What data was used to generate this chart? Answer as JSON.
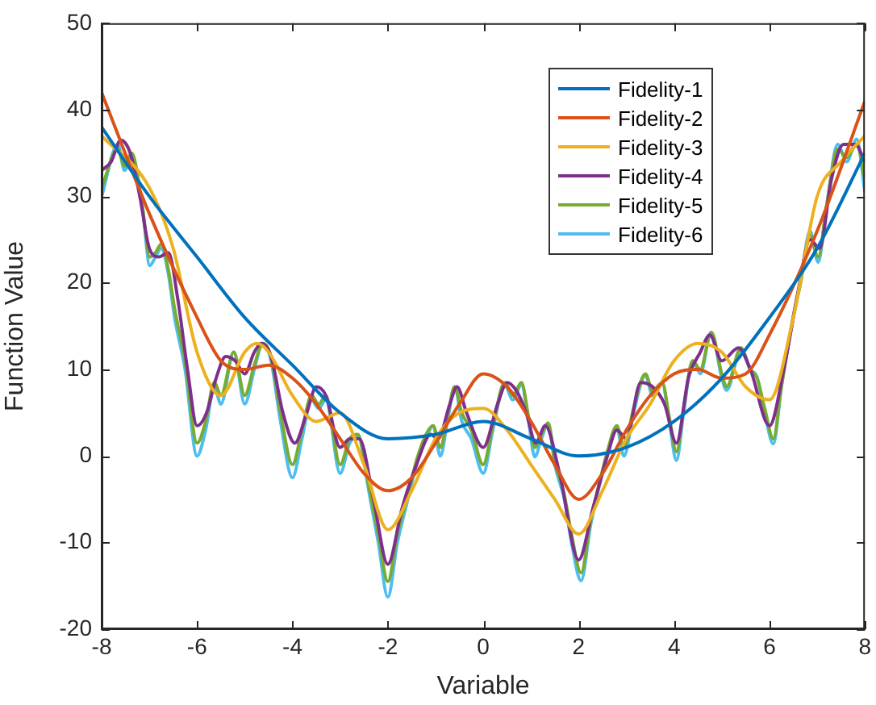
{
  "chart_data": {
    "type": "line",
    "xlabel": "Variable",
    "ylabel": "Function Value",
    "xlim": [
      -8,
      8
    ],
    "xticks": [
      -8,
      -6,
      -4,
      -2,
      0,
      2,
      4,
      6,
      8
    ],
    "ylim": [
      -20,
      50
    ],
    "yticks": [
      -20,
      -10,
      0,
      10,
      20,
      30,
      40,
      50
    ],
    "grid": false,
    "legend": "top right",
    "marker": "none",
    "line_style": "solid",
    "series": [
      {
        "name": "Fidelity-1",
        "color": "#0072bd",
        "x": [
          -8,
          -7,
          -6,
          -5,
          -4,
          -3,
          -2,
          -1,
          0,
          1,
          2,
          3,
          4,
          5,
          6,
          7,
          8
        ],
        "values": [
          38,
          30,
          23,
          16,
          10.5,
          5,
          2,
          2.5,
          4,
          2,
          0,
          1,
          4,
          9,
          16,
          24,
          35
        ]
      },
      {
        "name": "Fidelity-2",
        "color": "#d95319",
        "x": [
          -8,
          -7,
          -6,
          -5.5,
          -5,
          -4.5,
          -4,
          -3.5,
          -3,
          -2.5,
          -2,
          -1.5,
          -1,
          -0.5,
          0,
          0.5,
          1,
          1.5,
          2,
          2.5,
          3,
          3.5,
          4,
          4.5,
          5,
          5.5,
          6,
          7,
          8
        ],
        "values": [
          42,
          28,
          16,
          11,
          10,
          10.5,
          9,
          6,
          2,
          -2,
          -4,
          -2.5,
          1.5,
          6,
          9.5,
          8,
          4,
          -1,
          -5,
          -2,
          3,
          7,
          9.5,
          10,
          9,
          9.5,
          14,
          26,
          41
        ]
      },
      {
        "name": "Fidelity-3",
        "color": "#edb120",
        "x": [
          -8,
          -7,
          -6.5,
          -6,
          -5.5,
          -5,
          -4.75,
          -4.5,
          -4,
          -3.5,
          -3,
          -2.5,
          -2,
          -1.5,
          -1,
          -0.5,
          0,
          0.5,
          1,
          1.5,
          2,
          2.5,
          3,
          3.5,
          4,
          4.5,
          5,
          5.5,
          6,
          6.5,
          7,
          7.5,
          8
        ],
        "values": [
          37,
          31,
          24,
          12,
          7,
          12,
          13,
          12,
          7,
          4,
          5,
          -1,
          -8.5,
          -4,
          2,
          5,
          5.5,
          3,
          -1,
          -5,
          -9,
          -4,
          2,
          6,
          11,
          13,
          12,
          8,
          6.5,
          16,
          30,
          34,
          37
        ]
      },
      {
        "name": "Fidelity-4",
        "color": "#7e2f8e",
        "x": [
          -8,
          -7.8,
          -7.6,
          -7.4,
          -7.2,
          -7,
          -6.8,
          -6.6,
          -6.4,
          -6.2,
          -6,
          -5.8,
          -5.6,
          -5.4,
          -5.2,
          -5,
          -4.8,
          -4.65,
          -4.45,
          -4.2,
          -3.95,
          -3.7,
          -3.5,
          -3.3,
          -3,
          -2.8,
          -2.6,
          -2.3,
          -2,
          -1.7,
          -1.4,
          -1.1,
          -0.95,
          -0.7,
          -0.55,
          -0.35,
          0,
          0.3,
          0.5,
          0.7,
          0.9,
          1.1,
          1.3,
          1.6,
          2,
          2.3,
          2.6,
          2.8,
          3,
          3.3,
          3.55,
          3.8,
          4.05,
          4.3,
          4.55,
          4.75,
          5,
          5.35,
          5.6,
          6,
          6.3,
          6.6,
          6.85,
          7.05,
          7.3,
          7.55,
          7.8,
          8
        ],
        "values": [
          33,
          34,
          36.5,
          35,
          30,
          24,
          23,
          23.5,
          18,
          10,
          3.5,
          5,
          9,
          11.5,
          11,
          9.5,
          12,
          13,
          11.5,
          5,
          1.5,
          5,
          8,
          7,
          1,
          2,
          2,
          -5,
          -12.5,
          -6,
          -1,
          2.5,
          2,
          6,
          8,
          5,
          1,
          6,
          8.5,
          7.5,
          5,
          1.5,
          3.5,
          -2,
          -12,
          -6,
          0,
          3,
          2,
          8.5,
          8,
          6,
          1.5,
          9,
          12,
          14,
          11,
          12.5,
          10,
          3.5,
          10,
          19,
          25,
          24,
          32,
          36,
          36,
          34
        ]
      },
      {
        "name": "Fidelity-5",
        "color": "#77ac30",
        "x": [
          -8,
          -7.66,
          -7.52,
          -7.37,
          -7.15,
          -6.99,
          -6.87,
          -6.75,
          -6.6,
          -6.47,
          -6.25,
          -6,
          -5.82,
          -5.64,
          -5.5,
          -5.23,
          -5,
          -4.8,
          -4.62,
          -4.45,
          -4.25,
          -4,
          -3.8,
          -3.6,
          -3.45,
          -3.3,
          -3,
          -2.8,
          -2.63,
          -2.4,
          -2.2,
          -2,
          -1.8,
          -1.58,
          -1.4,
          -1.2,
          -1.05,
          -0.9,
          -0.75,
          -0.6,
          -0.45,
          -0.25,
          0,
          0.2,
          0.45,
          0.62,
          0.8,
          0.95,
          1.08,
          1.22,
          1.36,
          1.5,
          1.7,
          1.85,
          2.05,
          2.25,
          2.44,
          2.6,
          2.8,
          2.95,
          3.15,
          3.4,
          3.55,
          3.75,
          3.9,
          4.05,
          4.2,
          4.39,
          4.55,
          4.78,
          5,
          5.1,
          5.4,
          5.6,
          5.74,
          5.9,
          6.08,
          6.25,
          6.48,
          6.65,
          6.85,
          7.02,
          7.2,
          7.43,
          7.62,
          7.83,
          8
        ],
        "values": [
          31,
          35.5,
          33.5,
          35,
          29,
          23,
          23.5,
          24.5,
          21.5,
          17,
          11,
          1.5,
          4,
          8.5,
          7,
          12,
          7,
          10.5,
          13,
          11.5,
          5,
          -1,
          3,
          7,
          6,
          7,
          -1,
          2,
          2.5,
          -3.5,
          -9,
          -14.5,
          -9,
          -4.5,
          -0.5,
          2.5,
          3.5,
          1,
          4.5,
          8,
          5,
          3,
          -1,
          3.5,
          8.5,
          7,
          8.5,
          4.5,
          1,
          2.5,
          3.8,
          -0.5,
          -4.5,
          -9,
          -13.5,
          -7.5,
          -3,
          0.5,
          3.5,
          1,
          5.5,
          9.5,
          7.5,
          8.5,
          4.5,
          0.5,
          5.5,
          11,
          10,
          14.3,
          9.5,
          8,
          12.5,
          10,
          9,
          5.5,
          2,
          8,
          15.5,
          20,
          25.5,
          23,
          29,
          35.5,
          34.5,
          36,
          32
        ]
      },
      {
        "name": "Fidelity-6",
        "color": "#4dbeee",
        "x": [
          -8,
          -7.66,
          -7.52,
          -7.37,
          -7.15,
          -6.99,
          -6.87,
          -6.75,
          -6.6,
          -6.47,
          -6.25,
          -6,
          -5.82,
          -5.64,
          -5.5,
          -5.23,
          -5,
          -4.8,
          -4.62,
          -4.45,
          -4.25,
          -4,
          -3.8,
          -3.6,
          -3.45,
          -3.3,
          -3,
          -2.8,
          -2.63,
          -2.4,
          -2.2,
          -2,
          -1.8,
          -1.58,
          -1.4,
          -1.2,
          -1.05,
          -0.9,
          -0.75,
          -0.6,
          -0.45,
          -0.25,
          0,
          0.2,
          0.45,
          0.62,
          0.8,
          0.95,
          1.08,
          1.22,
          1.36,
          1.5,
          1.7,
          1.85,
          2.05,
          2.25,
          2.44,
          2.6,
          2.8,
          2.95,
          3.15,
          3.4,
          3.55,
          3.75,
          3.9,
          4.05,
          4.2,
          4.39,
          4.55,
          4.78,
          5,
          5.1,
          5.4,
          5.6,
          5.74,
          5.9,
          6.08,
          6.25,
          6.48,
          6.65,
          6.85,
          7.02,
          7.2,
          7.43,
          7.62,
          7.83,
          8
        ],
        "values": [
          30,
          36,
          33,
          34.5,
          29,
          22,
          23,
          24,
          21,
          16,
          10,
          0,
          3,
          8,
          6,
          12,
          6,
          10,
          13,
          11,
          4,
          -2.5,
          2,
          6.5,
          5.5,
          6.5,
          -2,
          1.5,
          2.3,
          -4,
          -10,
          -16.3,
          -10,
          -5,
          -1,
          2,
          3.5,
          0,
          4,
          8,
          4,
          2,
          -2,
          3,
          8.2,
          6.5,
          8.2,
          4,
          -0.1,
          2,
          3.8,
          -1,
          -5,
          -10,
          -14.4,
          -8,
          -3.3,
          0,
          3.2,
          0,
          5,
          9.3,
          7,
          8.5,
          4,
          -0.5,
          5,
          11,
          9.5,
          14.3,
          9,
          7.6,
          12.2,
          10,
          9.1,
          5,
          1.4,
          8,
          15.6,
          20,
          26,
          22.4,
          29,
          36,
          34,
          36.6,
          30.5
        ]
      }
    ]
  }
}
